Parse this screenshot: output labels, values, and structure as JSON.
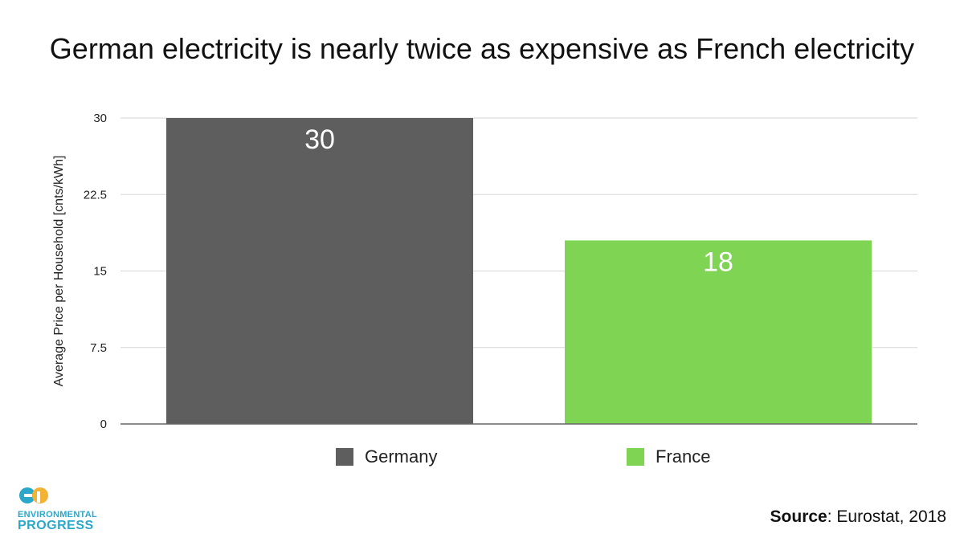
{
  "chart_data": {
    "type": "bar",
    "title": "German electricity is nearly twice as expensive as French electricity",
    "ylabel": "Average Price per Household [cnts/kWh]",
    "xlabel": "",
    "categories": [
      "Germany",
      "France"
    ],
    "values": [
      30,
      18
    ],
    "value_labels": [
      "30",
      "18"
    ],
    "colors": [
      "#5e5e5e",
      "#7fd454"
    ],
    "ylim": [
      0,
      30
    ],
    "yticks": [
      0,
      7.5,
      15,
      22.5,
      30
    ],
    "ytick_labels": [
      "0",
      "7.5",
      "15",
      "22.5",
      "30"
    ],
    "grid": true,
    "legend_position": "bottom"
  },
  "legend": [
    {
      "label": "Germany",
      "color": "#5e5e5e"
    },
    {
      "label": "France",
      "color": "#7fd454"
    }
  ],
  "logo": {
    "line1": "ENVIRONMENTAL",
    "line2": "PROGRESS",
    "colors": [
      "#2aa7c9",
      "#f2b233"
    ]
  },
  "source": {
    "label": "Source",
    "text": ": Eurostat, 2018"
  }
}
